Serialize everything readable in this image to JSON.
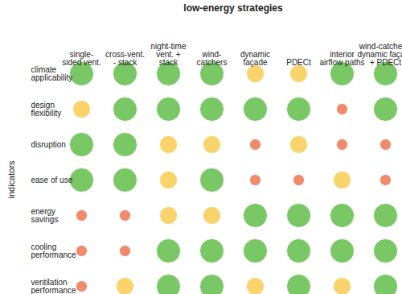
{
  "chart_data": {
    "type": "dot-matrix",
    "title": "low-energy strategies",
    "y_label": "indicators",
    "categories": [
      "single-\nsided vent.",
      "cross-vent.\n- stack",
      "night-time\nvent. +\nstack",
      "wind-\ncatchers",
      "dynamic\nfaçade",
      "PDECt",
      "interior\nairflow paths",
      "wind-catcher +\ndynamic façade\n+ PDECt"
    ],
    "y_categories": [
      "climate\napplicability",
      "design\nflexibility",
      "disruption",
      "ease of use",
      "energy\nsavings",
      "cooling\nperformance",
      "ventilation\nperformance"
    ],
    "values": [
      [
        3,
        3,
        3,
        3,
        2,
        2,
        3,
        3
      ],
      [
        2,
        3,
        3,
        3,
        3,
        3,
        1,
        3
      ],
      [
        3,
        3,
        2,
        2,
        1,
        2,
        1,
        1
      ],
      [
        3,
        3,
        2,
        3,
        1,
        1,
        2,
        1
      ],
      [
        1,
        1,
        2,
        2,
        3,
        3,
        3,
        3
      ],
      [
        1,
        1,
        3,
        3,
        3,
        3,
        3,
        3
      ],
      [
        1,
        2,
        3,
        3,
        2,
        3,
        2,
        3
      ]
    ],
    "colors": [
      [
        "#79c865",
        "#79c865",
        "#79c865",
        "#79c865",
        "#f9d36b",
        "#f9d36b",
        "#79c865",
        "#79c865"
      ],
      [
        "#f9d36b",
        "#79c865",
        "#79c865",
        "#79c865",
        "#79c865",
        "#79c865",
        "#ef8a6b",
        "#79c865"
      ],
      [
        "#79c865",
        "#79c865",
        "#f9d36b",
        "#f9d36b",
        "#ef8a6b",
        "#f9d36b",
        "#ef8a6b",
        "#ef8a6b"
      ],
      [
        "#79c865",
        "#79c865",
        "#f9d36b",
        "#79c865",
        "#ef8a6b",
        "#ef8a6b",
        "#f9d36b",
        "#ef8a6b"
      ],
      [
        "#ef8a6b",
        "#ef8a6b",
        "#f9d36b",
        "#f9d36b",
        "#79c865",
        "#79c865",
        "#79c865",
        "#79c865"
      ],
      [
        "#ef8a6b",
        "#ef8a6b",
        "#79c865",
        "#79c865",
        "#79c865",
        "#79c865",
        "#79c865",
        "#79c865"
      ],
      [
        "#ef8a6b",
        "#f9d36b",
        "#79c865",
        "#79c865",
        "#f9d36b",
        "#79c865",
        "#f9d36b",
        "#79c865"
      ]
    ]
  }
}
